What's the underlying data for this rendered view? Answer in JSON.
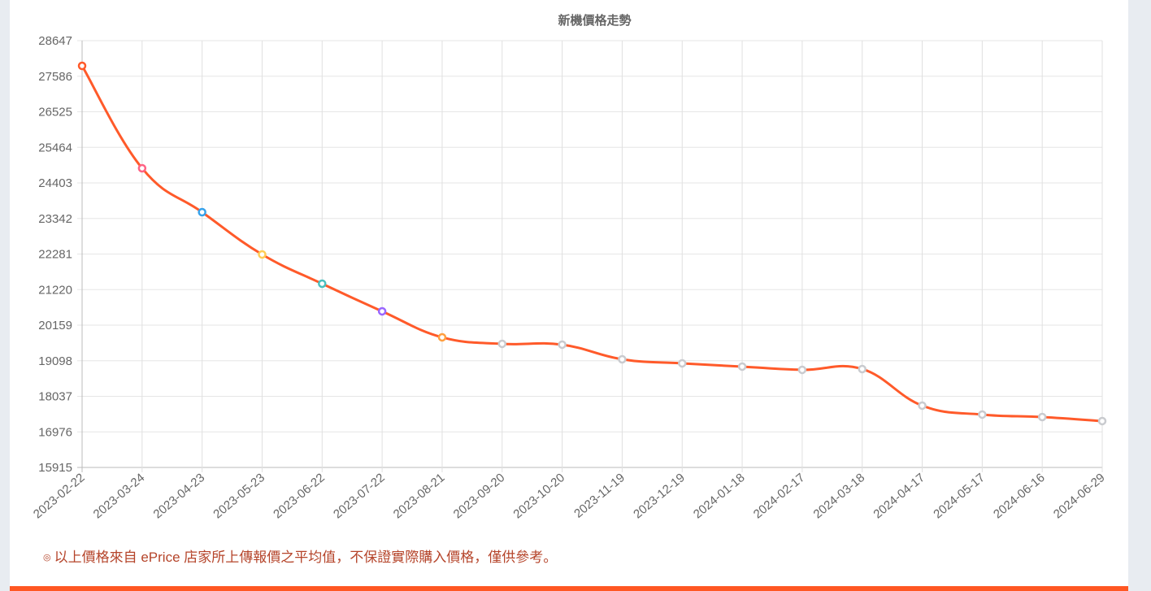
{
  "chart_data": {
    "type": "line",
    "title": "新機價格走勢",
    "x": [
      "2023-02-22",
      "2023-03-24",
      "2023-04-23",
      "2023-05-23",
      "2023-06-22",
      "2023-07-22",
      "2023-08-21",
      "2023-09-20",
      "2023-10-20",
      "2023-11-19",
      "2023-12-19",
      "2024-01-18",
      "2024-02-17",
      "2024-03-18",
      "2024-04-17",
      "2024-05-17",
      "2024-06-16",
      "2024-06-29"
    ],
    "values": [
      27895,
      24840,
      23530,
      22269,
      21396,
      20572,
      19796,
      19602,
      19578,
      19141,
      19020,
      18923,
      18826,
      18850,
      17759,
      17492,
      17419,
      17298
    ],
    "yticks": [
      28647,
      27586,
      26525,
      25464,
      24403,
      23342,
      22281,
      21220,
      20159,
      19098,
      18037,
      16976,
      15915
    ],
    "ylim": [
      15915,
      28647
    ],
    "grid": true,
    "line_color": "#ff5a2a",
    "point_colors": [
      "#ff5a2a",
      "#ff6384",
      "#36a2eb",
      "#ffcd56",
      "#4bc0c0",
      "#9966ff",
      "#ff9f40",
      "#c9cbcf",
      "#c9cbcf",
      "#c9cbcf",
      "#c9cbcf",
      "#c9cbcf",
      "#c9cbcf",
      "#c9cbcf",
      "#c9cbcf",
      "#c9cbcf",
      "#c9cbcf",
      "#c9cbcf"
    ]
  },
  "footnote": {
    "mark": "◎",
    "text": "以上價格來自 ePrice 店家所上傳報價之平均值，不保證實際購入價格，僅供參考。"
  },
  "colors": {
    "accent": "#ff5722",
    "background": "#e8ecf1"
  }
}
